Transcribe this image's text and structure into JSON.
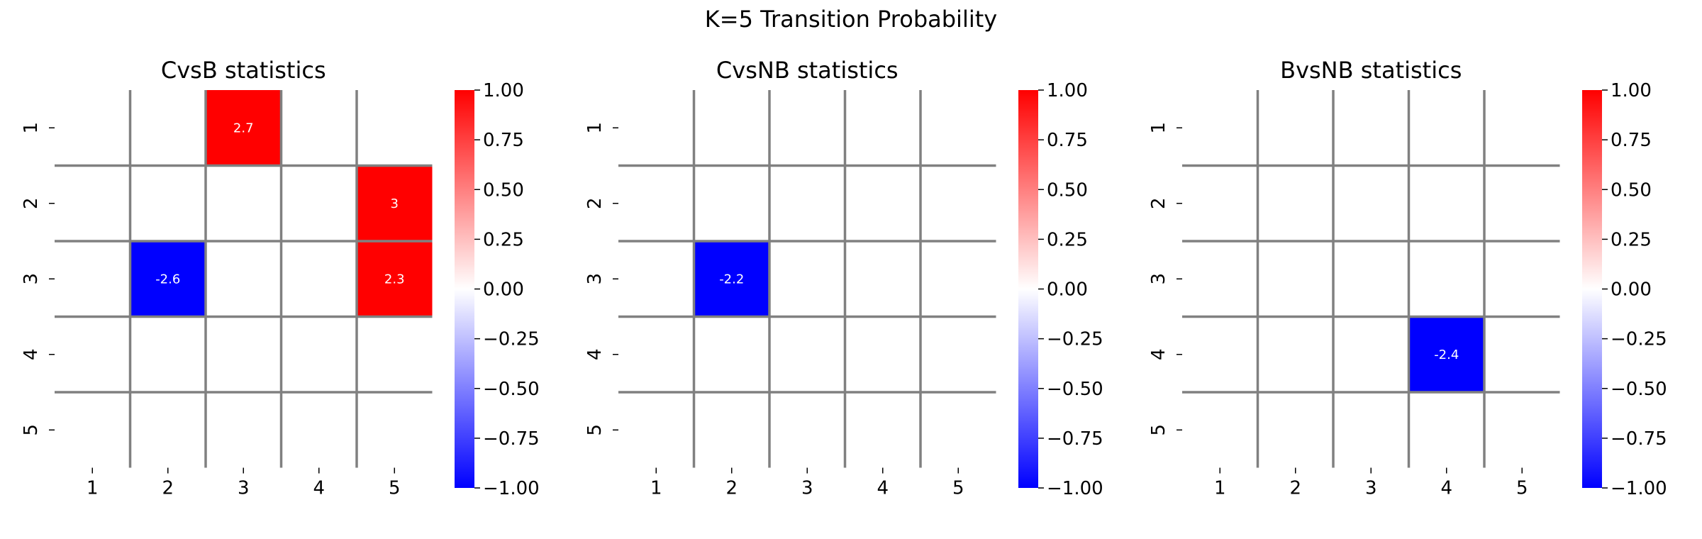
{
  "suptitle": "K=5 Transition Probability",
  "colorbar": {
    "ticks": [
      "1.00",
      "0.75",
      "0.50",
      "0.25",
      "0.00",
      "−0.25",
      "−0.50",
      "−0.75",
      "−1.00"
    ],
    "vmin": -1,
    "vmax": 1,
    "colormap": "bwr"
  },
  "colors": {
    "positive": "#ff0000",
    "negative": "#0000ff",
    "neutral": "#ffffff",
    "gridline": "#808080"
  },
  "chart_data": [
    {
      "type": "heatmap",
      "title": "CvsB statistics",
      "x_ticks": [
        "1",
        "2",
        "3",
        "4",
        "5"
      ],
      "y_ticks": [
        "1",
        "2",
        "3",
        "4",
        "5"
      ],
      "cells": [
        {
          "row": 1,
          "col": 3,
          "value": 2.7,
          "label": "2.7"
        },
        {
          "row": 2,
          "col": 5,
          "value": 3,
          "label": "3"
        },
        {
          "row": 3,
          "col": 2,
          "value": -2.6,
          "label": "-2.6"
        },
        {
          "row": 3,
          "col": 5,
          "value": 2.3,
          "label": "2.3"
        }
      ]
    },
    {
      "type": "heatmap",
      "title": "CvsNB statistics",
      "x_ticks": [
        "1",
        "2",
        "3",
        "4",
        "5"
      ],
      "y_ticks": [
        "1",
        "2",
        "3",
        "4",
        "5"
      ],
      "cells": [
        {
          "row": 3,
          "col": 2,
          "value": -2.2,
          "label": "-2.2"
        }
      ]
    },
    {
      "type": "heatmap",
      "title": "BvsNB statistics",
      "x_ticks": [
        "1",
        "2",
        "3",
        "4",
        "5"
      ],
      "y_ticks": [
        "1",
        "2",
        "3",
        "4",
        "5"
      ],
      "cells": [
        {
          "row": 4,
          "col": 4,
          "value": -2.4,
          "label": "-2.4"
        }
      ]
    }
  ]
}
